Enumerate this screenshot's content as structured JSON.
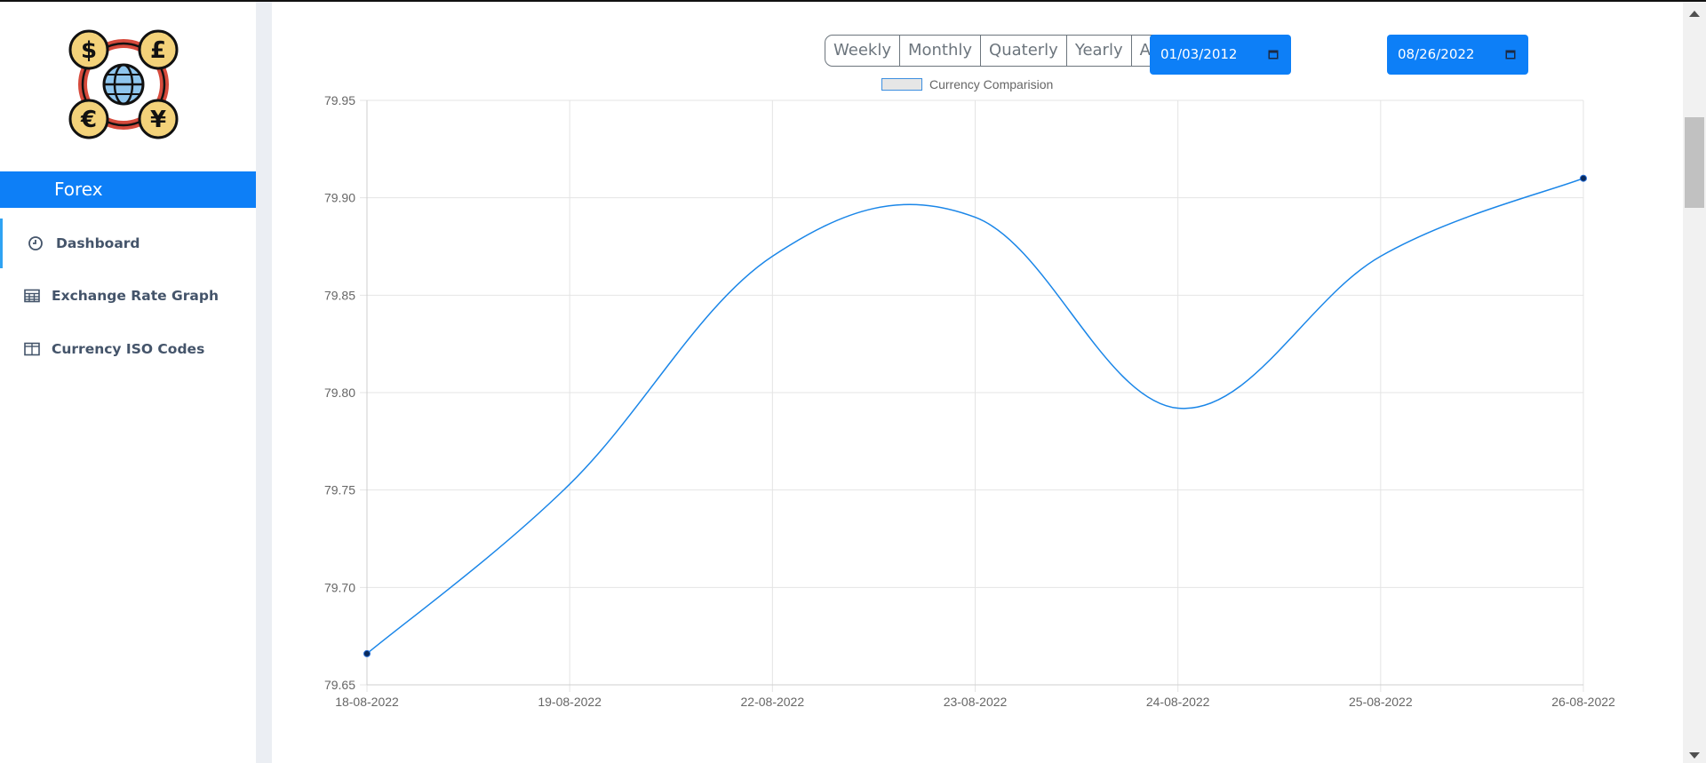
{
  "sidebar": {
    "brand": "Forex",
    "items": [
      {
        "label": "Dashboard",
        "icon": "clock-icon"
      },
      {
        "label": "Exchange Rate Graph",
        "icon": "table-icon"
      },
      {
        "label": "Currency ISO Codes",
        "icon": "columns-icon"
      }
    ]
  },
  "filters": {
    "range_buttons": [
      "Weekly",
      "Monthly",
      "Quaterly",
      "Yearly",
      "All"
    ],
    "start_date": "01/03/2012",
    "end_date": "08/26/2022"
  },
  "colors": {
    "accent": "#0d7ff7",
    "line": "#1a86e8",
    "point": "#0b2a5b"
  },
  "chart_data": {
    "type": "line",
    "title": "",
    "xlabel": "",
    "ylabel": "",
    "categories": [
      "18-08-2022",
      "19-08-2022",
      "22-08-2022",
      "23-08-2022",
      "24-08-2022",
      "25-08-2022",
      "26-08-2022"
    ],
    "series": [
      {
        "name": "Currency Comparision",
        "values": [
          79.666,
          79.753,
          79.87,
          79.89,
          79.792,
          79.87,
          79.91
        ]
      }
    ],
    "ylim": [
      79.65,
      79.95
    ],
    "yticks": [
      "79.95",
      "79.90",
      "79.85",
      "79.80",
      "79.75",
      "79.70",
      "79.65"
    ],
    "grid": true,
    "legend": "top-center"
  }
}
